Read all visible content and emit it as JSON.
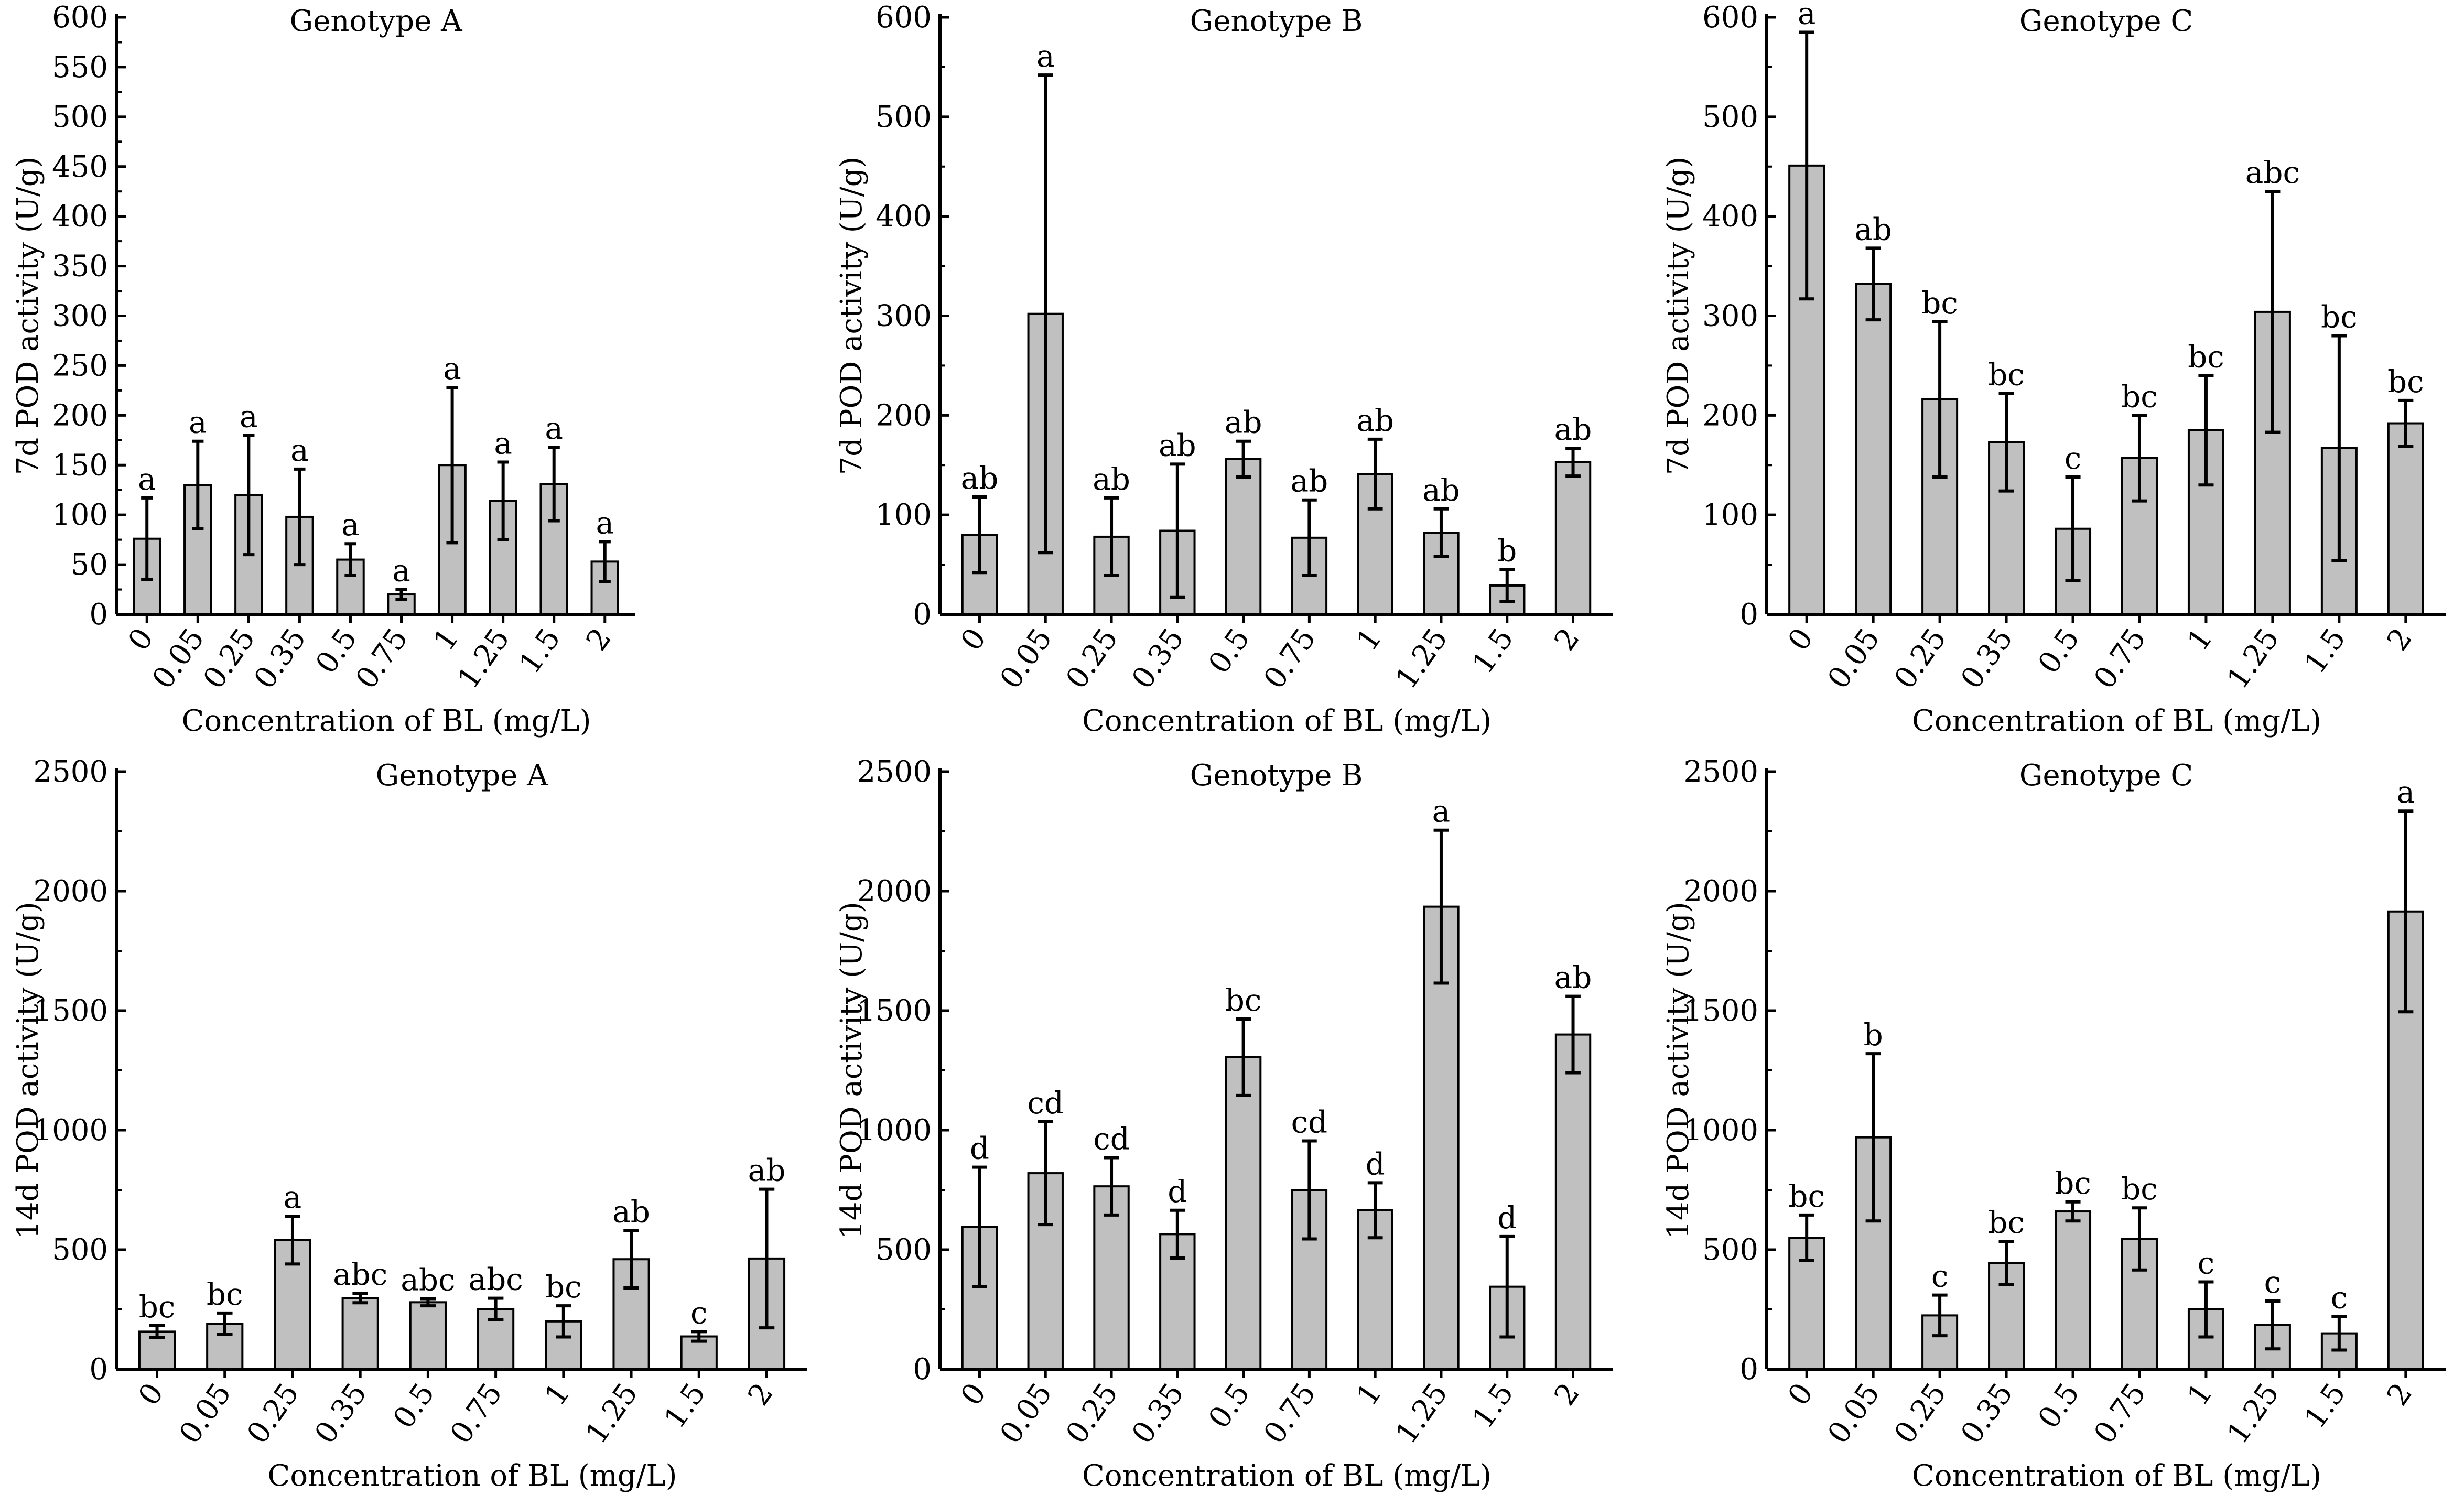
{
  "chart_data": [
    {
      "type": "bar",
      "title": "Genotype A",
      "ylabel": "7d POD activity (U/g)",
      "xlabel": "Concentration of BL (mg/L)",
      "categories": [
        "0",
        "0.05",
        "0.25",
        "0.35",
        "0.5",
        "0.75",
        "1",
        "1.25",
        "1.5",
        "2"
      ],
      "values": [
        76,
        130,
        120,
        98,
        55,
        20,
        150,
        114,
        131,
        53
      ],
      "errors": [
        41,
        44,
        60,
        48,
        16,
        5,
        78,
        39,
        37,
        20
      ],
      "letters": [
        "a",
        "a",
        "a",
        "a",
        "a",
        "a",
        "a",
        "a",
        "a",
        "a"
      ],
      "ylim": [
        0,
        600
      ],
      "yticks": [
        "0",
        "50",
        "100",
        "150",
        "200",
        "250",
        "300",
        "350",
        "400",
        "450",
        "500",
        "550",
        "600"
      ]
    },
    {
      "type": "bar",
      "title": "Genotype B",
      "ylabel": "7d POD activity (U/g)",
      "xlabel": "Concentration of BL (mg/L)",
      "categories": [
        "0",
        "0.05",
        "0.25",
        "0.35",
        "0.5",
        "0.75",
        "1",
        "1.25",
        "1.5",
        "2"
      ],
      "values": [
        80,
        302,
        78,
        84,
        156,
        77,
        141,
        82,
        29,
        153
      ],
      "errors": [
        38,
        240,
        39,
        67,
        18,
        38,
        35,
        24,
        16,
        14
      ],
      "letters": [
        "ab",
        "a",
        "ab",
        "ab",
        "ab",
        "ab",
        "ab",
        "ab",
        "b",
        "ab"
      ],
      "ylim": [
        0,
        600
      ],
      "yticks": [
        "0",
        "100",
        "200",
        "300",
        "400",
        "500",
        "600"
      ]
    },
    {
      "type": "bar",
      "title": "Genotype C",
      "ylabel": "7d POD activity (U/g)",
      "xlabel": "Concentration of BL (mg/L)",
      "categories": [
        "0",
        "0.05",
        "0.25",
        "0.35",
        "0.5",
        "0.75",
        "1",
        "1.25",
        "1.5",
        "2"
      ],
      "values": [
        451,
        332,
        216,
        173,
        86,
        157,
        185,
        304,
        167,
        192
      ],
      "errors": [
        134,
        36,
        78,
        49,
        52,
        43,
        55,
        121,
        113,
        23
      ],
      "letters": [
        "a",
        "ab",
        "bc",
        "bc",
        "c",
        "bc",
        "bc",
        "abc",
        "bc",
        "bc"
      ],
      "ylim": [
        0,
        600
      ],
      "yticks": [
        "0",
        "100",
        "200",
        "300",
        "400",
        "500",
        "600"
      ]
    },
    {
      "type": "bar",
      "title": "Genotype A",
      "ylabel": "14d POD activity (U/g)",
      "xlabel": "Concentration of BL (mg/L)",
      "categories": [
        "0",
        "0.05",
        "0.25",
        "0.35",
        "0.5",
        "0.75",
        "1",
        "1.25",
        "1.5",
        "2"
      ],
      "values": [
        157,
        190,
        540,
        298,
        280,
        252,
        200,
        460,
        137,
        463
      ],
      "errors": [
        25,
        45,
        100,
        20,
        15,
        45,
        65,
        120,
        20,
        290
      ],
      "letters": [
        "bc",
        "bc",
        "a",
        "abc",
        "abc",
        "abc",
        "bc",
        "ab",
        "c",
        "ab"
      ],
      "ylim": [
        0,
        2500
      ],
      "yticks": [
        "0",
        "500",
        "1000",
        "1500",
        "2000",
        "2500"
      ]
    },
    {
      "type": "bar",
      "title": "Genotype B",
      "ylabel": "14d POD activity (U/g)",
      "xlabel": "Concentration of BL (mg/L)",
      "categories": [
        "0",
        "0.05",
        "0.25",
        "0.35",
        "0.5",
        "0.75",
        "1",
        "1.25",
        "1.5",
        "2"
      ],
      "values": [
        595,
        820,
        765,
        565,
        1305,
        750,
        665,
        1935,
        345,
        1400
      ],
      "errors": [
        250,
        215,
        120,
        100,
        160,
        205,
        115,
        320,
        210,
        160
      ],
      "letters": [
        "d",
        "cd",
        "cd",
        "d",
        "bc",
        "cd",
        "d",
        "a",
        "d",
        "ab"
      ],
      "ylim": [
        0,
        2500
      ],
      "yticks": [
        "0",
        "500",
        "1000",
        "1500",
        "2000",
        "2500"
      ]
    },
    {
      "type": "bar",
      "title": "Genotype C",
      "ylabel": "14d POD activity (U/g)",
      "xlabel": "Concentration of BL (mg/L)",
      "categories": [
        "0",
        "0.05",
        "0.25",
        "0.35",
        "0.5",
        "0.75",
        "1",
        "1.25",
        "1.5",
        "2"
      ],
      "values": [
        550,
        970,
        225,
        445,
        660,
        545,
        250,
        185,
        150,
        1915
      ],
      "errors": [
        95,
        350,
        85,
        90,
        40,
        130,
        115,
        100,
        70,
        420
      ],
      "letters": [
        "bc",
        "b",
        "c",
        "bc",
        "bc",
        "bc",
        "c",
        "c",
        "c",
        "a"
      ],
      "ylim": [
        0,
        2500
      ],
      "yticks": [
        "0",
        "500",
        "1000",
        "1500",
        "2000",
        "2500"
      ]
    }
  ]
}
